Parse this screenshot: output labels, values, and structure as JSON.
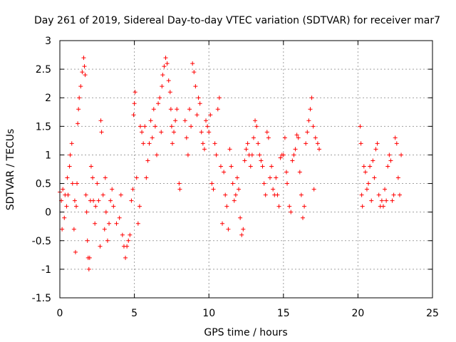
{
  "chart_data": {
    "type": "scatter",
    "title": "Day 261 of 2019, Sidereal Day-to-day VTEC variation (SDTVAR) for receiver mar7",
    "xlabel": "GPS time / hours",
    "ylabel": "SDTVAR / TECUs",
    "xlim": [
      0,
      25
    ],
    "ylim": [
      -1.5,
      3
    ],
    "x_ticks": [
      0,
      5,
      10,
      15,
      20,
      25
    ],
    "x_tick_labels": [
      "0",
      "5",
      "10",
      "15",
      "20",
      "25"
    ],
    "y_ticks": [
      -1.5,
      -1,
      -0.5,
      0,
      0.5,
      1,
      1.5,
      2,
      2.5,
      3
    ],
    "y_tick_labels": [
      "-1.5",
      "-1",
      "-0.5",
      "0",
      "0.5",
      "1",
      "1.5",
      "2",
      "2.5",
      "3"
    ],
    "grid": true,
    "marker": "+",
    "color": "#ff0000",
    "series": [
      {
        "name": "SDTVAR",
        "points": [
          [
            0.0,
            0.35
          ],
          [
            0.1,
            0.2
          ],
          [
            0.15,
            -0.3
          ],
          [
            0.2,
            0.4
          ],
          [
            0.3,
            -0.1
          ],
          [
            0.35,
            0.3
          ],
          [
            0.45,
            0.1
          ],
          [
            0.5,
            0.6
          ],
          [
            0.55,
            0.3
          ],
          [
            0.65,
            0.8
          ],
          [
            0.7,
            1.0
          ],
          [
            0.8,
            1.2
          ],
          [
            0.85,
            0.5
          ],
          [
            0.95,
            -0.3
          ],
          [
            1.0,
            0.2
          ],
          [
            1.05,
            -0.7
          ],
          [
            1.1,
            0.1
          ],
          [
            1.15,
            0.5
          ],
          [
            1.2,
            1.55
          ],
          [
            1.25,
            1.8
          ],
          [
            1.3,
            2.0
          ],
          [
            1.4,
            2.2
          ],
          [
            1.5,
            2.45
          ],
          [
            1.6,
            2.7
          ],
          [
            1.65,
            2.55
          ],
          [
            1.7,
            2.4
          ],
          [
            1.75,
            0.3
          ],
          [
            1.8,
            0.0
          ],
          [
            1.85,
            -0.5
          ],
          [
            1.9,
            -0.8
          ],
          [
            1.95,
            -1.0
          ],
          [
            2.0,
            -0.8
          ],
          [
            2.05,
            0.2
          ],
          [
            2.1,
            0.8
          ],
          [
            2.2,
            0.6
          ],
          [
            2.25,
            0.2
          ],
          [
            2.35,
            -0.2
          ],
          [
            2.4,
            0.1
          ],
          [
            2.5,
            0.5
          ],
          [
            2.6,
            0.2
          ],
          [
            2.7,
            -0.6
          ],
          [
            2.75,
            1.6
          ],
          [
            2.8,
            1.4
          ],
          [
            2.9,
            0.3
          ],
          [
            3.0,
            -0.3
          ],
          [
            3.05,
            0.6
          ],
          [
            3.1,
            0.0
          ],
          [
            3.2,
            -0.5
          ],
          [
            3.3,
            -0.2
          ],
          [
            3.4,
            0.2
          ],
          [
            3.5,
            0.4
          ],
          [
            3.6,
            0.1
          ],
          [
            3.8,
            -0.2
          ],
          [
            4.0,
            -0.1
          ],
          [
            4.1,
            0.3
          ],
          [
            4.2,
            -0.4
          ],
          [
            4.3,
            -0.6
          ],
          [
            4.4,
            -0.8
          ],
          [
            4.5,
            -0.6
          ],
          [
            4.6,
            -0.5
          ],
          [
            4.7,
            -0.4
          ],
          [
            4.8,
            0.2
          ],
          [
            4.9,
            0.4
          ],
          [
            4.95,
            1.7
          ],
          [
            5.0,
            1.9
          ],
          [
            5.05,
            2.1
          ],
          [
            5.15,
            0.6
          ],
          [
            5.25,
            -0.2
          ],
          [
            5.35,
            0.1
          ],
          [
            5.4,
            1.5
          ],
          [
            5.5,
            1.4
          ],
          [
            5.6,
            1.2
          ],
          [
            5.7,
            1.5
          ],
          [
            5.8,
            0.6
          ],
          [
            5.9,
            0.9
          ],
          [
            6.0,
            1.2
          ],
          [
            6.1,
            1.6
          ],
          [
            6.2,
            1.3
          ],
          [
            6.3,
            1.8
          ],
          [
            6.4,
            1.5
          ],
          [
            6.5,
            1.0
          ],
          [
            6.6,
            1.9
          ],
          [
            6.7,
            2.0
          ],
          [
            6.8,
            1.4
          ],
          [
            6.85,
            2.2
          ],
          [
            6.9,
            2.4
          ],
          [
            7.0,
            2.55
          ],
          [
            7.1,
            2.7
          ],
          [
            7.2,
            2.6
          ],
          [
            7.3,
            2.3
          ],
          [
            7.4,
            2.1
          ],
          [
            7.45,
            1.8
          ],
          [
            7.5,
            1.5
          ],
          [
            7.55,
            1.2
          ],
          [
            7.65,
            1.4
          ],
          [
            7.75,
            1.6
          ],
          [
            7.85,
            1.8
          ],
          [
            8.0,
            0.5
          ],
          [
            8.05,
            0.4
          ],
          [
            8.4,
            1.6
          ],
          [
            8.5,
            1.3
          ],
          [
            8.6,
            1.0
          ],
          [
            8.7,
            1.8
          ],
          [
            8.8,
            1.5
          ],
          [
            8.9,
            2.6
          ],
          [
            9.0,
            2.45
          ],
          [
            9.1,
            2.2
          ],
          [
            9.2,
            1.7
          ],
          [
            9.3,
            2.0
          ],
          [
            9.4,
            1.9
          ],
          [
            9.5,
            1.4
          ],
          [
            9.6,
            1.2
          ],
          [
            9.7,
            1.1
          ],
          [
            9.8,
            1.6
          ],
          [
            9.9,
            1.5
          ],
          [
            10.0,
            1.4
          ],
          [
            10.1,
            1.7
          ],
          [
            10.2,
            0.5
          ],
          [
            10.3,
            0.4
          ],
          [
            10.4,
            1.2
          ],
          [
            10.5,
            1.0
          ],
          [
            10.6,
            1.8
          ],
          [
            10.7,
            2.0
          ],
          [
            10.8,
            0.8
          ],
          [
            10.9,
            -0.2
          ],
          [
            11.0,
            0.7
          ],
          [
            11.1,
            0.3
          ],
          [
            11.2,
            0.1
          ],
          [
            11.3,
            -0.3
          ],
          [
            11.4,
            1.1
          ],
          [
            11.5,
            0.8
          ],
          [
            11.6,
            0.5
          ],
          [
            11.7,
            0.2
          ],
          [
            11.8,
            0.3
          ],
          [
            11.9,
            0.6
          ],
          [
            12.0,
            0.4
          ],
          [
            12.1,
            -0.1
          ],
          [
            12.2,
            -0.4
          ],
          [
            12.3,
            -0.3
          ],
          [
            12.4,
            0.9
          ],
          [
            12.5,
            1.1
          ],
          [
            12.6,
            1.2
          ],
          [
            12.7,
            1.0
          ],
          [
            12.8,
            0.8
          ],
          [
            12.9,
            1.0
          ],
          [
            13.0,
            1.3
          ],
          [
            13.1,
            1.6
          ],
          [
            13.2,
            1.5
          ],
          [
            13.3,
            1.2
          ],
          [
            13.4,
            1.0
          ],
          [
            13.5,
            0.9
          ],
          [
            13.6,
            0.8
          ],
          [
            13.7,
            0.5
          ],
          [
            13.8,
            0.3
          ],
          [
            13.9,
            1.4
          ],
          [
            14.0,
            1.3
          ],
          [
            14.1,
            0.6
          ],
          [
            14.2,
            0.8
          ],
          [
            14.3,
            0.4
          ],
          [
            14.4,
            0.3
          ],
          [
            14.5,
            0.6
          ],
          [
            14.6,
            0.3
          ],
          [
            14.7,
            0.1
          ],
          [
            14.8,
            0.95
          ],
          [
            14.9,
            1.0
          ],
          [
            15.0,
            1.0
          ],
          [
            15.1,
            1.3
          ],
          [
            15.2,
            0.7
          ],
          [
            15.25,
            0.5
          ],
          [
            15.4,
            0.1
          ],
          [
            15.5,
            0.0
          ],
          [
            15.6,
            0.9
          ],
          [
            15.7,
            1.0
          ],
          [
            15.8,
            1.1
          ],
          [
            15.9,
            1.35
          ],
          [
            16.0,
            1.3
          ],
          [
            16.1,
            0.7
          ],
          [
            16.2,
            0.3
          ],
          [
            16.3,
            -0.1
          ],
          [
            16.4,
            0.1
          ],
          [
            16.5,
            1.2
          ],
          [
            16.6,
            1.4
          ],
          [
            16.7,
            1.6
          ],
          [
            16.8,
            1.8
          ],
          [
            16.9,
            2.0
          ],
          [
            17.0,
            1.5
          ],
          [
            17.05,
            0.4
          ],
          [
            17.15,
            1.3
          ],
          [
            17.3,
            1.2
          ],
          [
            17.4,
            1.1
          ],
          [
            20.15,
            1.5
          ],
          [
            20.2,
            1.2
          ],
          [
            20.25,
            0.3
          ],
          [
            20.3,
            0.1
          ],
          [
            20.4,
            0.8
          ],
          [
            20.5,
            0.7
          ],
          [
            20.6,
            0.4
          ],
          [
            20.7,
            0.5
          ],
          [
            20.8,
            0.8
          ],
          [
            20.9,
            0.2
          ],
          [
            21.0,
            0.9
          ],
          [
            21.1,
            0.6
          ],
          [
            21.2,
            1.1
          ],
          [
            21.3,
            1.2
          ],
          [
            21.4,
            0.3
          ],
          [
            21.5,
            0.1
          ],
          [
            21.6,
            0.2
          ],
          [
            21.7,
            0.1
          ],
          [
            21.8,
            0.4
          ],
          [
            21.9,
            0.2
          ],
          [
            22.0,
            0.8
          ],
          [
            22.1,
            1.0
          ],
          [
            22.2,
            0.9
          ],
          [
            22.3,
            0.2
          ],
          [
            22.4,
            0.3
          ],
          [
            22.5,
            1.3
          ],
          [
            22.6,
            1.2
          ],
          [
            22.7,
            0.6
          ],
          [
            22.8,
            0.3
          ],
          [
            22.9,
            1.0
          ]
        ]
      }
    ]
  }
}
